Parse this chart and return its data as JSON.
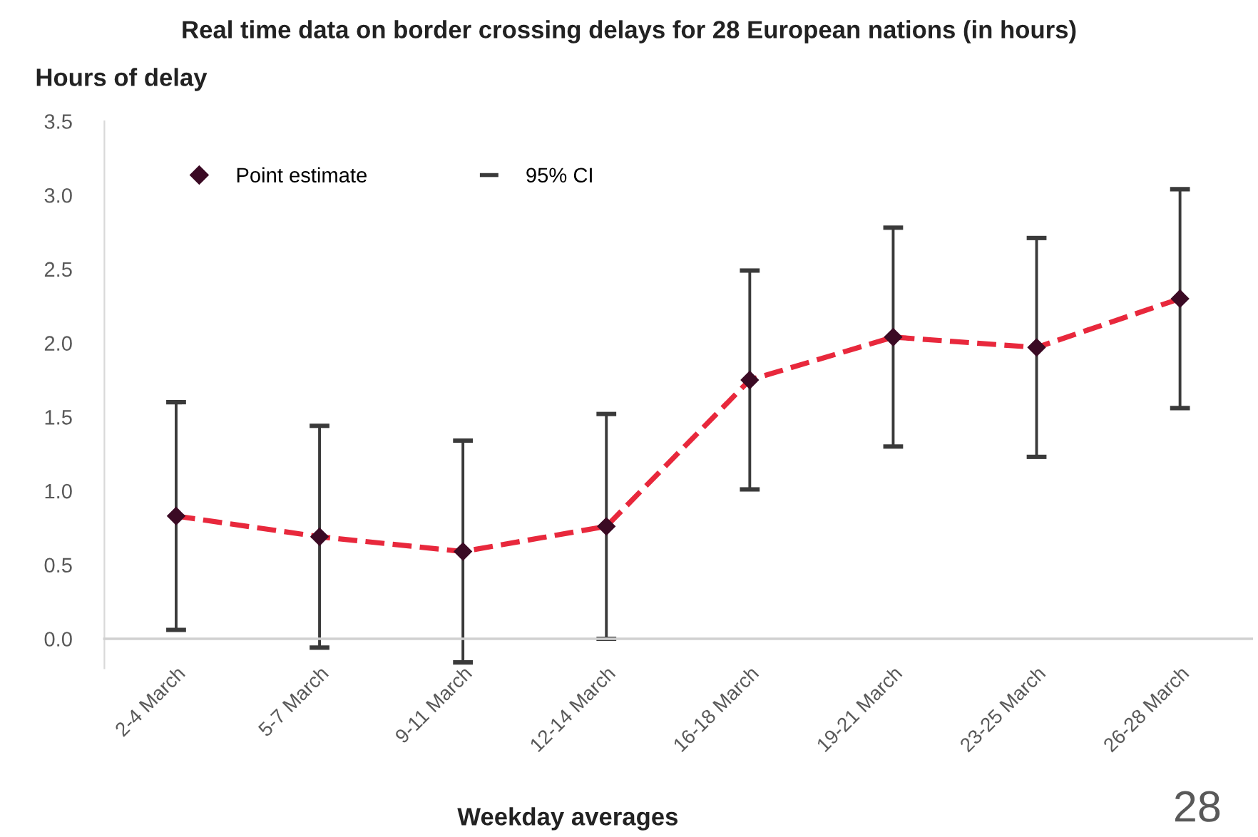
{
  "chart_data": {
    "type": "line",
    "title": "Real time data on border crossing delays for 28 European nations (in hours)",
    "xlabel": "Weekday averages",
    "ylabel": "Hours of delay",
    "categories": [
      "2-4 March",
      "5-7 March",
      "9-11 March",
      "12-14 March",
      "16-18 March",
      "19-21 March",
      "23-25 March",
      "26-28 March"
    ],
    "series": [
      {
        "name": "Point estimate",
        "color": "#e8283c",
        "colors": [
          "#3b0a24",
          "#3b0a24",
          "#3b0a24",
          "#3b0a24",
          "#3b0a24",
          "#3b0a24",
          "#3b0a24",
          "#3b0a24"
        ],
        "values": [
          0.83,
          0.69,
          0.59,
          0.76,
          1.75,
          2.04,
          1.97,
          2.3
        ],
        "errors": [
          0.77,
          0.75,
          0.75,
          0.76,
          0.74,
          0.74,
          0.74,
          0.74
        ]
      }
    ],
    "ylim": [
      -0.2,
      3.5
    ],
    "yticks": [
      {
        "value": 0,
        "label": "0.0"
      },
      0.5,
      {
        "value": 1,
        "label": "1.0"
      },
      1.5,
      {
        "value": 2,
        "label": "2.0"
      },
      2.5,
      {
        "value": 3,
        "label": "3.0"
      },
      3.5
    ],
    "marker": "diamond",
    "line_style": "dashed",
    "legend": "top left",
    "annotations": [
      "95% CI",
      "28"
    ]
  }
}
